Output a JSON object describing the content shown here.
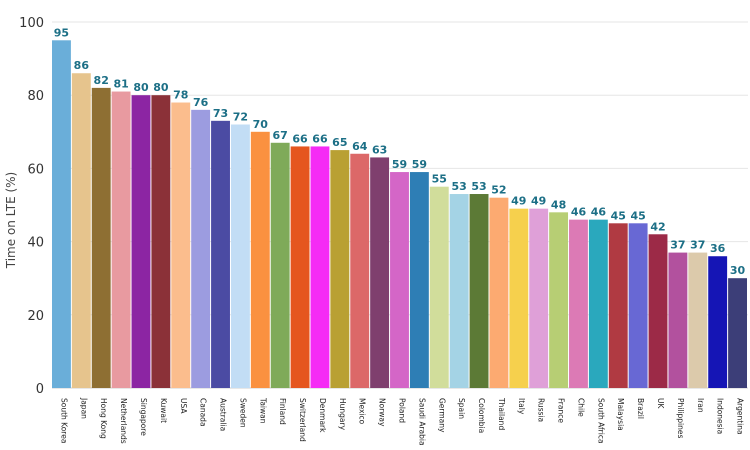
{
  "chart_data": {
    "type": "bar",
    "ylabel": "Time on LTE (%)",
    "ylim": [
      0,
      100
    ],
    "yticks": [
      0,
      20,
      40,
      60,
      80,
      100
    ],
    "grid": true,
    "categories": [
      "South Korea",
      "Japan",
      "Hong Kong",
      "Netherlands",
      "Singapore",
      "Kuwait",
      "USA",
      "Canada",
      "Australia",
      "Sweden",
      "Taiwan",
      "Finland",
      "Switzerland",
      "Denmark",
      "Hungary",
      "Mexico",
      "Norway",
      "Poland",
      "Saudi Arabia",
      "Germany",
      "Spain",
      "Colombia",
      "Thailand",
      "Italy",
      "Russia",
      "France",
      "Chile",
      "South Africa",
      "Malaysia",
      "Brazil",
      "UK",
      "Philippines",
      "Iran",
      "Indonesia",
      "Argentina"
    ],
    "values": [
      95,
      86,
      82,
      81,
      80,
      80,
      78,
      76,
      73,
      72,
      70,
      67,
      66,
      66,
      65,
      64,
      63,
      59,
      59,
      55,
      53,
      53,
      52,
      49,
      49,
      48,
      46,
      46,
      45,
      45,
      42,
      37,
      37,
      36,
      30
    ],
    "colors": [
      "#6aaed9",
      "#e6c48d",
      "#8e6f33",
      "#e89aa0",
      "#8c25a3",
      "#8b3138",
      "#fbbd8d",
      "#9c9ce0",
      "#4b4ba3",
      "#c2ddf5",
      "#fa9140",
      "#7faa59",
      "#e5561f",
      "#f52bf5",
      "#b9a033",
      "#dc6868",
      "#7f3f6e",
      "#d466c7",
      "#2e7eb5",
      "#d1dd9b",
      "#a4d3e5",
      "#5c7a36",
      "#fcaa71",
      "#f6d04d",
      "#dfa0d8",
      "#b7ce74",
      "#dc7ab5",
      "#2aa8bd",
      "#b03a42",
      "#6868d4",
      "#9c2a47",
      "#b2519e",
      "#dccaab",
      "#1515b5",
      "#3c3e78"
    ]
  }
}
